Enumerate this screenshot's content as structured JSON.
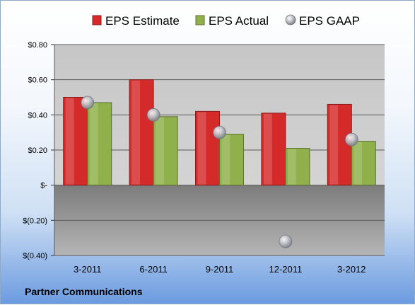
{
  "chart_data": {
    "type": "bar",
    "categories": [
      "3-2011",
      "6-2011",
      "9-2011",
      "12-2011",
      "3-2012"
    ],
    "series": [
      {
        "name": "EPS Estimate",
        "kind": "bar",
        "color": "#d42a2a",
        "values": [
          0.5,
          0.6,
          0.42,
          0.41,
          0.46
        ]
      },
      {
        "name": "EPS Actual",
        "kind": "bar",
        "color": "#8fb04a",
        "values": [
          0.47,
          0.39,
          0.29,
          0.21,
          0.25
        ]
      },
      {
        "name": "EPS GAAP",
        "kind": "marker",
        "color": "#b8bcc4",
        "values": [
          0.47,
          0.4,
          0.3,
          -0.32,
          0.26
        ]
      }
    ],
    "ylim": [
      -0.4,
      0.8
    ],
    "yticks": [
      {
        "value": 0.8,
        "label": "$0.80"
      },
      {
        "value": 0.6,
        "label": "$0.60"
      },
      {
        "value": 0.4,
        "label": "$0.40"
      },
      {
        "value": 0.2,
        "label": "$0.20"
      },
      {
        "value": 0,
        "label": "$-"
      },
      {
        "value": -0.2,
        "label": "$(0.20)"
      },
      {
        "value": -0.4,
        "label": "$(0.40)"
      }
    ],
    "grid": true,
    "legend_position": "top",
    "footer": "Partner Communications"
  }
}
